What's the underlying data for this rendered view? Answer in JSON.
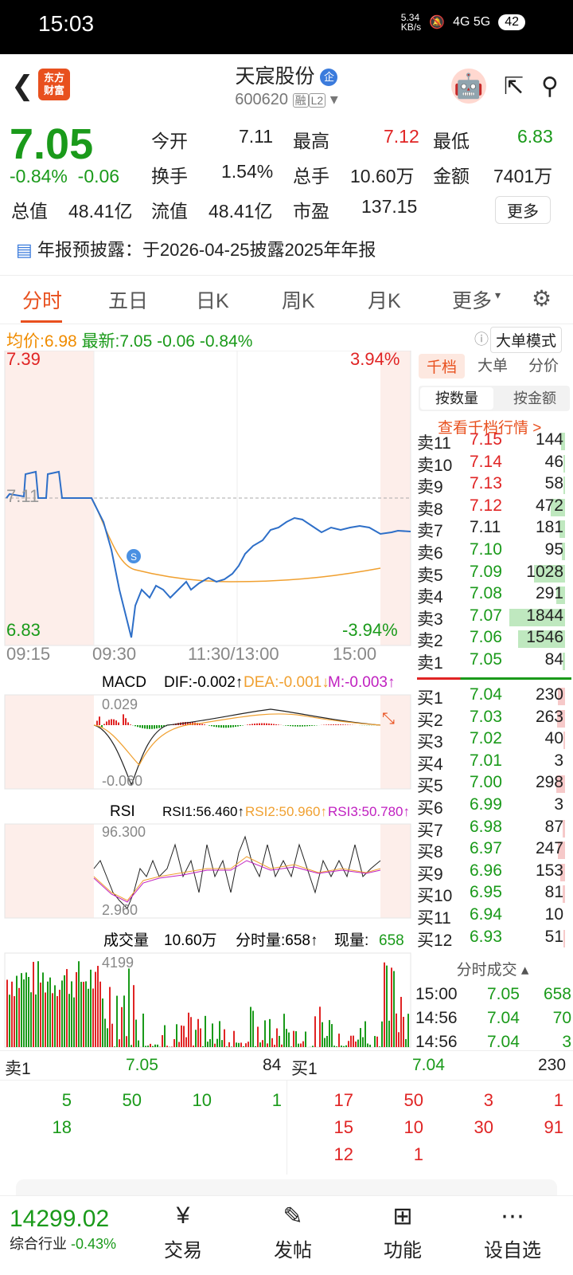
{
  "status": {
    "time": "15:03",
    "speed": "5.34\nKB/s",
    "net": "4G 5G",
    "battery": "42"
  },
  "header": {
    "name": "天宸股份",
    "qi": "企",
    "code": "600620",
    "rong": "融",
    "level": "L2",
    "logo": "东方\n财富"
  },
  "quote": {
    "price": "7.05",
    "pct": "-0.84%",
    "chg": "-0.06",
    "open_label": "今开",
    "open": "7.11",
    "high_label": "最高",
    "high": "7.12",
    "low_label": "最低",
    "low": "6.83",
    "turnover_label": "换手",
    "turnover": "1.54%",
    "vol_label": "总手",
    "vol": "10.60万",
    "amt_label": "金额",
    "amt": "7401万",
    "mcap_label": "总值",
    "mcap": "48.41亿",
    "float_label": "流值",
    "float": "48.41亿",
    "pe_label": "市盈",
    "pe": "137.15",
    "more": "更多"
  },
  "notice": "年报预披露：于2026-04-25披露2025年年报",
  "tabs": [
    "分时",
    "五日",
    "日K",
    "周K",
    "月K",
    "更多"
  ],
  "avgline": {
    "avg_label": "均价:",
    "avg": "6.98",
    "new_label": "最新:",
    "new": "7.05",
    "chg": "-0.06",
    "pct": "-0.84%",
    "mode": "大单模式"
  },
  "chart": {
    "y_top": "7.39",
    "y_mid": "7.11",
    "y_bot": "6.83",
    "pct_top": "3.94%",
    "pct_bot": "-3.94%",
    "times": [
      "09:15",
      "09:30",
      "11:30/13:00",
      "15:00"
    ]
  },
  "macd": {
    "name": "MACD",
    "dif": "DIF:-0.002↑",
    "dea": "DEA:-0.001↓",
    "m": "M:-0.003↑",
    "top": "0.029",
    "bot": "-0.060"
  },
  "rsi": {
    "name": "RSI",
    "r1": "RSI1:56.460↑",
    "r2": "RSI2:50.960↑",
    "r3": "RSI3:50.780↑",
    "top": "96.300",
    "bot": "2.960"
  },
  "volume": {
    "name": "成交量",
    "total": "10.60万",
    "fs": "分时量:658↑",
    "now_label": "现量:",
    "now": "658",
    "top": "4199"
  },
  "book": {
    "tabs": [
      "千档",
      "大单",
      "分价"
    ],
    "seg": [
      "按数量",
      "按金额"
    ],
    "link": "查看千档行情 >",
    "sells": [
      [
        "卖11",
        "7.15",
        "144"
      ],
      [
        "卖10",
        "7.14",
        "46"
      ],
      [
        "卖9",
        "7.13",
        "58"
      ],
      [
        "卖8",
        "7.12",
        "472"
      ],
      [
        "卖7",
        "7.11",
        "181"
      ],
      [
        "卖6",
        "7.10",
        "95"
      ],
      [
        "卖5",
        "7.09",
        "1028"
      ],
      [
        "卖4",
        "7.08",
        "291"
      ],
      [
        "卖3",
        "7.07",
        "1844"
      ],
      [
        "卖2",
        "7.06",
        "1546"
      ],
      [
        "卖1",
        "7.05",
        "84"
      ]
    ],
    "buys": [
      [
        "买1",
        "7.04",
        "230"
      ],
      [
        "买2",
        "7.03",
        "263"
      ],
      [
        "买3",
        "7.02",
        "40"
      ],
      [
        "买4",
        "7.01",
        "3"
      ],
      [
        "买5",
        "7.00",
        "298"
      ],
      [
        "买6",
        "6.99",
        "3"
      ],
      [
        "买7",
        "6.98",
        "87"
      ],
      [
        "买8",
        "6.97",
        "247"
      ],
      [
        "买9",
        "6.96",
        "153"
      ],
      [
        "买10",
        "6.95",
        "81"
      ],
      [
        "买11",
        "6.94",
        "10"
      ],
      [
        "买12",
        "6.93",
        "51"
      ]
    ]
  },
  "tick": {
    "title": "分时成交",
    "rows": [
      [
        "15:00",
        "7.05",
        "658"
      ],
      [
        "14:56",
        "7.04",
        "70"
      ],
      [
        "14:56",
        "7.04",
        "3"
      ]
    ]
  },
  "bottom": {
    "sell_label": "卖1",
    "sell_price": "7.05",
    "sell_vol": "84",
    "buy_label": "买1",
    "buy_price": "7.04",
    "buy_vol": "230",
    "sell_orders": [
      [
        "5",
        "50",
        "10",
        "1"
      ],
      [
        "18",
        "",
        "",
        ""
      ]
    ],
    "buy_orders": [
      [
        "17",
        "50",
        "3",
        "1"
      ],
      [
        "15",
        "10",
        "30",
        "91"
      ],
      [
        "12",
        "1",
        "",
        ""
      ]
    ]
  },
  "nav": {
    "index": "14299.02",
    "index_name": "综合行业",
    "index_pct": "-0.43%",
    "items": [
      "交易",
      "发帖",
      "功能",
      "设自选"
    ]
  }
}
